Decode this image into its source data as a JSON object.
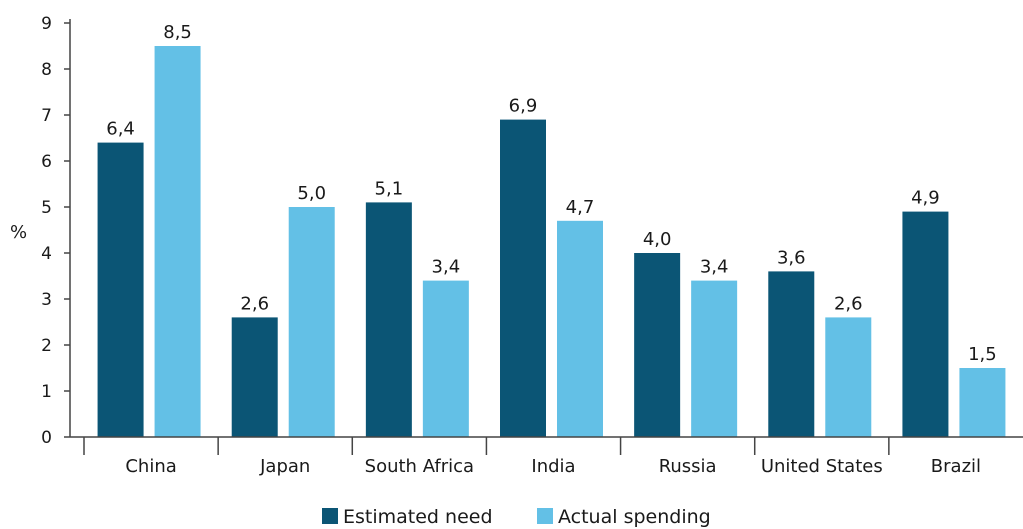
{
  "chart_data": {
    "type": "bar",
    "title": "",
    "xlabel": "",
    "ylabel": "%",
    "ylim": [
      0,
      9
    ],
    "yticks": [
      "0",
      "1",
      "2",
      "3",
      "4",
      "5",
      "6",
      "7",
      "8",
      "9"
    ],
    "grid": false,
    "legend_position": "bottom",
    "categories": [
      "China",
      "Japan",
      "South Africa",
      "India",
      "Russia",
      "United States",
      "Brazil"
    ],
    "series": [
      {
        "name": "Estimated need",
        "color": "#0b5575",
        "values": [
          6.4,
          2.6,
          5.1,
          6.9,
          4.0,
          3.6,
          4.9
        ],
        "labels": [
          "6,4",
          "2,6",
          "5,1",
          "6,9",
          "4,0",
          "3,6",
          "4,9"
        ]
      },
      {
        "name": "Actual spending",
        "color": "#63c0e6",
        "values": [
          8.5,
          5.0,
          3.4,
          4.7,
          3.4,
          2.6,
          1.5
        ],
        "labels": [
          "8,5",
          "5,0",
          "3,4",
          "4,7",
          "3,4",
          "2,6",
          "1,5"
        ]
      }
    ]
  }
}
